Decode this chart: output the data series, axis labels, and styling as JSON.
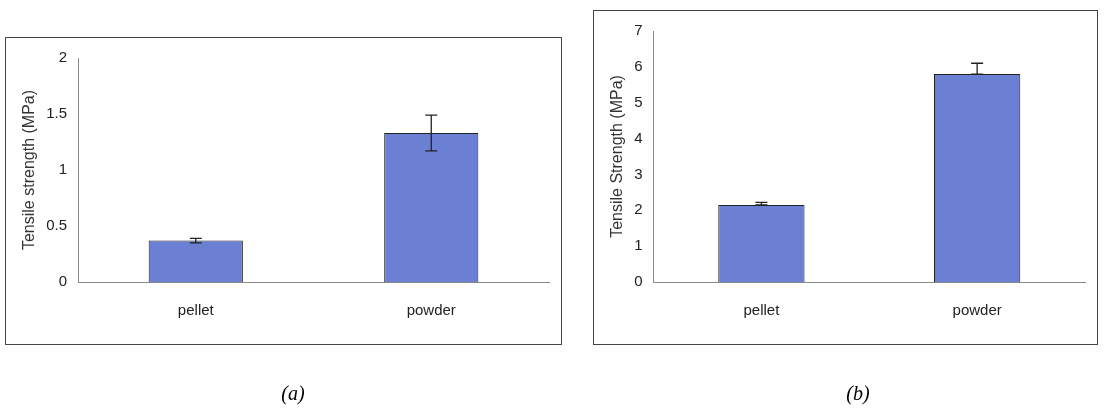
{
  "chart_data": [
    {
      "type": "bar",
      "title": "(a)",
      "ylabel": "Tensile strength (MPa)",
      "categories": [
        "pellet",
        "powder"
      ],
      "values": [
        0.37,
        1.33
      ],
      "errors": [
        [
          0.35,
          0.39
        ],
        [
          1.17,
          1.49
        ]
      ],
      "color": "#6b80d2",
      "ylim": [
        0,
        2
      ],
      "yticks": [
        0,
        0.5,
        1,
        1.5,
        2
      ],
      "grid": false,
      "legend": false
    },
    {
      "type": "bar",
      "title": "(b)",
      "ylabel": "Tensile Strength (MPa)",
      "categories": [
        "pellet",
        "powder"
      ],
      "values": [
        2.15,
        5.8
      ],
      "errors": [
        [
          2.15,
          2.22
        ],
        [
          5.8,
          6.1
        ]
      ],
      "color": "#6b80d2",
      "ylim": [
        0,
        7
      ],
      "yticks": [
        0,
        1,
        2,
        3,
        4,
        5,
        6,
        7
      ],
      "grid": false,
      "legend": false
    }
  ]
}
